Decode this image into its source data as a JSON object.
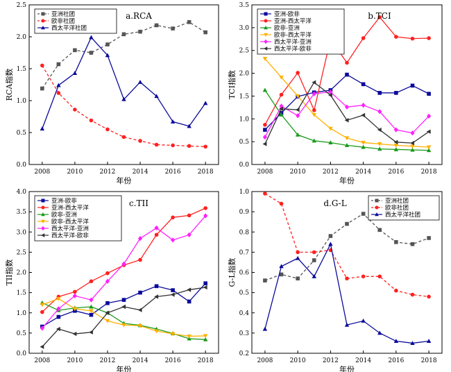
{
  "chart_data": [
    {
      "type": "line",
      "title": "a.RCA",
      "xlabel": "年份",
      "ylabel": "RCA指数",
      "x": [
        2008,
        2009,
        2010,
        2011,
        2012,
        2013,
        2014,
        2015,
        2016,
        2017,
        2018
      ],
      "xticks": [
        "2008",
        "2010",
        "2012",
        "2014",
        "2016",
        "2018"
      ],
      "xlim": [
        2007.2,
        2018.8
      ],
      "ylim": [
        0,
        2.5
      ],
      "yticks": [
        "0.0",
        "0.5",
        "1.0",
        "1.5",
        "2.0",
        "2.5"
      ],
      "legend_position": "top-left",
      "series": [
        {
          "name": "亚洲社团",
          "color": "#555555",
          "marker": "square",
          "dash": "dash",
          "values": [
            1.19,
            1.57,
            1.79,
            1.75,
            1.88,
            2.04,
            2.08,
            2.18,
            2.13,
            2.23,
            2.07
          ]
        },
        {
          "name": "欧非社团",
          "color": "#ff2020",
          "marker": "circle",
          "dash": "dash",
          "values": [
            1.55,
            1.12,
            0.86,
            0.69,
            0.55,
            0.43,
            0.37,
            0.31,
            0.3,
            0.29,
            0.28
          ]
        },
        {
          "name": "西太平洋社团",
          "color": "#0a0a9a",
          "marker": "triangle-up",
          "dash": "solid",
          "values": [
            0.56,
            1.24,
            1.43,
            1.99,
            1.71,
            1.02,
            1.29,
            1.07,
            0.67,
            0.6,
            0.96
          ]
        }
      ]
    },
    {
      "type": "line",
      "title": "b.TCI",
      "xlabel": "年份",
      "ylabel": "TCI指数",
      "x": [
        2008,
        2009,
        2010,
        2011,
        2012,
        2013,
        2014,
        2015,
        2016,
        2017,
        2018
      ],
      "xticks": [
        "2008",
        "2010",
        "2012",
        "2014",
        "2016",
        "2018"
      ],
      "xlim": [
        2007.2,
        2018.8
      ],
      "ylim": [
        0,
        3.5
      ],
      "yticks": [
        "0.0",
        "0.5",
        "1.0",
        "1.5",
        "2.0",
        "2.5",
        "3.0",
        "3.5"
      ],
      "legend_position": "top-left",
      "series": [
        {
          "name": "亚洲-欧非",
          "color": "#0a0a9a",
          "marker": "square",
          "dash": "solid",
          "values": [
            0.76,
            1.13,
            1.49,
            1.58,
            1.63,
            1.97,
            1.76,
            1.57,
            1.57,
            1.73,
            1.55
          ]
        },
        {
          "name": "亚洲-西太平洋",
          "color": "#ff2020",
          "marker": "circle",
          "dash": "solid",
          "values": [
            0.87,
            1.53,
            2.01,
            1.19,
            2.75,
            2.23,
            2.77,
            3.23,
            2.8,
            2.76,
            2.77
          ]
        },
        {
          "name": "欧非-亚洲",
          "color": "#1a9a1a",
          "marker": "triangle-up",
          "dash": "solid",
          "values": [
            1.63,
            1.09,
            0.65,
            0.52,
            0.48,
            0.42,
            0.38,
            0.34,
            0.33,
            0.32,
            0.31
          ]
        },
        {
          "name": "欧非-西太平洋",
          "color": "#ffb000",
          "marker": "triangle-down",
          "dash": "solid",
          "values": [
            2.32,
            1.91,
            1.5,
            1.09,
            0.79,
            0.58,
            0.48,
            0.45,
            0.42,
            0.4,
            0.38
          ]
        },
        {
          "name": "西太平洋-亚洲",
          "color": "#ff20ff",
          "marker": "diamond",
          "dash": "solid",
          "values": [
            0.6,
            1.28,
            1.07,
            1.55,
            1.59,
            1.26,
            1.3,
            1.16,
            0.76,
            0.69,
            1.06
          ]
        },
        {
          "name": "西太平洋-欧非",
          "color": "#333333",
          "marker": "triangle-left",
          "dash": "solid",
          "values": [
            0.45,
            1.22,
            1.2,
            1.8,
            1.52,
            0.97,
            1.08,
            0.76,
            0.49,
            0.47,
            0.72
          ]
        }
      ]
    },
    {
      "type": "line",
      "title": "c.TII",
      "xlabel": "年份",
      "ylabel": "TII指数",
      "x": [
        2008,
        2009,
        2010,
        2011,
        2012,
        2013,
        2014,
        2015,
        2016,
        2017,
        2018
      ],
      "xticks": [
        "2008",
        "2010",
        "2012",
        "2014",
        "2016",
        "2018"
      ],
      "xlim": [
        2007.2,
        2018.8
      ],
      "ylim": [
        0,
        4.0
      ],
      "yticks": [
        "0.0",
        "0.5",
        "1.0",
        "1.5",
        "2.0",
        "2.5",
        "3.0",
        "3.5",
        "4.0"
      ],
      "legend_position": "top-left",
      "series": [
        {
          "name": "亚洲-欧非",
          "color": "#0a0a9a",
          "marker": "square",
          "dash": "solid",
          "values": [
            0.66,
            0.9,
            1.05,
            0.95,
            1.24,
            1.32,
            1.5,
            1.66,
            1.56,
            1.28,
            1.73
          ]
        },
        {
          "name": "亚洲-西太平洋",
          "color": "#ff2020",
          "marker": "circle",
          "dash": "solid",
          "values": [
            1.02,
            1.4,
            1.52,
            1.78,
            1.98,
            2.18,
            2.31,
            2.93,
            3.36,
            3.41,
            3.59
          ]
        },
        {
          "name": "欧非-亚洲",
          "color": "#1a9a1a",
          "marker": "triangle-up",
          "dash": "solid",
          "values": [
            1.25,
            1.06,
            1.12,
            1.15,
            1.0,
            0.74,
            0.69,
            0.6,
            0.49,
            0.36,
            0.34
          ]
        },
        {
          "name": "欧非-西太平洋",
          "color": "#ffb000",
          "marker": "triangle-down",
          "dash": "solid",
          "values": [
            1.2,
            1.35,
            1.1,
            1.05,
            0.8,
            0.7,
            0.68,
            0.55,
            0.48,
            0.42,
            0.43
          ]
        },
        {
          "name": "西太平洋-亚洲",
          "color": "#ff20ff",
          "marker": "diamond",
          "dash": "solid",
          "values": [
            0.62,
            1.1,
            1.42,
            1.32,
            1.78,
            2.21,
            2.84,
            3.1,
            2.8,
            2.93,
            3.4
          ]
        },
        {
          "name": "西太平洋-欧非",
          "color": "#333333",
          "marker": "triangle-left",
          "dash": "solid",
          "values": [
            0.16,
            0.6,
            0.48,
            0.52,
            1.0,
            1.15,
            1.07,
            1.4,
            1.45,
            1.57,
            1.63
          ]
        }
      ]
    },
    {
      "type": "line",
      "title": "d.G-L",
      "xlabel": "年份",
      "ylabel": "G-L指数",
      "x": [
        2008,
        2009,
        2010,
        2011,
        2012,
        2013,
        2014,
        2015,
        2016,
        2017,
        2018
      ],
      "xticks": [
        "2008",
        "2010",
        "2012",
        "2014",
        "2016",
        "2018"
      ],
      "xlim": [
        2007.2,
        2018.8
      ],
      "ylim": [
        0.2,
        1.0
      ],
      "yticks": [
        "0.2",
        "0.3",
        "0.4",
        "0.5",
        "0.6",
        "0.7",
        "0.8",
        "0.9",
        "1.0"
      ],
      "legend_position": "top-right",
      "series": [
        {
          "name": "亚洲社团",
          "color": "#555555",
          "marker": "square",
          "dash": "dash",
          "values": [
            0.56,
            0.59,
            0.57,
            0.66,
            0.78,
            0.84,
            0.89,
            0.81,
            0.75,
            0.74,
            0.77
          ]
        },
        {
          "name": "欧非社团",
          "color": "#ff2020",
          "marker": "circle",
          "dash": "dash",
          "values": [
            0.99,
            0.94,
            0.7,
            0.7,
            0.71,
            0.57,
            0.58,
            0.58,
            0.51,
            0.49,
            0.48
          ]
        },
        {
          "name": "西太平洋社团",
          "color": "#0a0a9a",
          "marker": "triangle-up",
          "dash": "solid",
          "values": [
            0.32,
            0.63,
            0.67,
            0.58,
            0.74,
            0.34,
            0.36,
            0.3,
            0.26,
            0.25,
            0.26
          ]
        }
      ]
    }
  ]
}
